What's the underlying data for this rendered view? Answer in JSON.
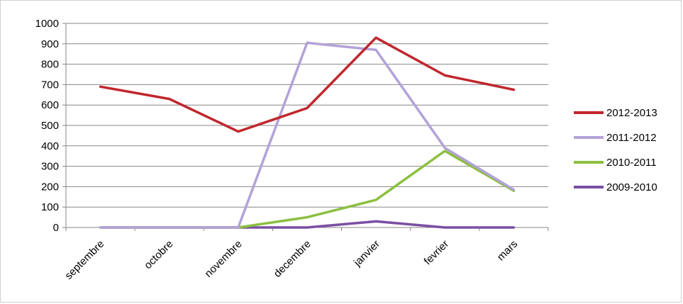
{
  "chart_data": {
    "type": "line",
    "title": "",
    "xlabel": "",
    "ylabel": "",
    "categories": [
      "septembre",
      "octobre",
      "novembre",
      "decembre",
      "janvier",
      "fevrier",
      "mars"
    ],
    "ylim": [
      0,
      1000
    ],
    "yticks": [
      "0",
      "100",
      "200",
      "300",
      "400",
      "500",
      "600",
      "700",
      "800",
      "900",
      "1000"
    ],
    "grid": "horizontal",
    "legend_position": "right",
    "series": [
      {
        "name": "2012-2013",
        "color": "#c0272d",
        "values": [
          690,
          630,
          470,
          585,
          930,
          745,
          675
        ]
      },
      {
        "name": "2011-2012",
        "color": "#b3a2d9",
        "values": [
          0,
          0,
          0,
          905,
          870,
          390,
          185
        ]
      },
      {
        "name": "2010-2011",
        "color": "#8cbf3f",
        "values": [
          0,
          0,
          0,
          50,
          135,
          375,
          180
        ]
      },
      {
        "name": "2009-2010",
        "color": "#7a4fa3",
        "values": [
          0,
          0,
          0,
          0,
          30,
          0,
          0
        ]
      }
    ]
  }
}
